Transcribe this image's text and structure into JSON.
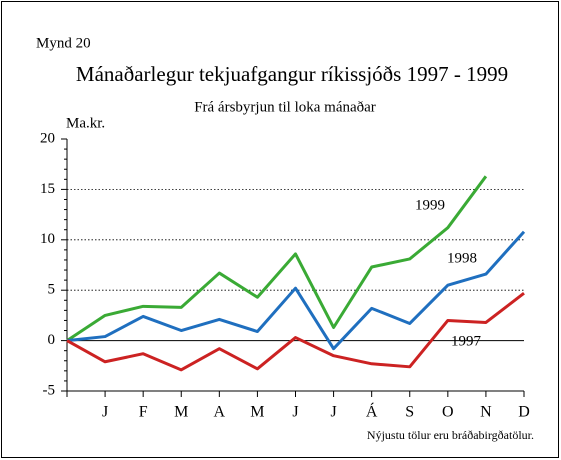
{
  "chart_data": {
    "type": "line",
    "figure_label": "Mynd 20",
    "title": "Mánaðarlegur tekjuafgangur ríkissjóðs 1997 - 1999",
    "subtitle": "Frá ársbyrjun til loka mánaðar",
    "y_label": "Ma.kr.",
    "footnote": "Nýjustu tölur eru bráðabirgðatölur.",
    "categories": [
      null,
      "J",
      "F",
      "M",
      "A",
      "M",
      "J",
      "J",
      "Á",
      "S",
      "O",
      "N",
      "D"
    ],
    "series": [
      {
        "name": "1999",
        "color": "#3aaa35",
        "values": [
          0,
          2.5,
          3.4,
          3.3,
          6.7,
          4.3,
          8.6,
          1.3,
          7.3,
          8.1,
          11.2,
          16.3,
          null
        ]
      },
      {
        "name": "1998",
        "color": "#1f6fbf",
        "values": [
          0,
          0.4,
          2.4,
          1.0,
          2.1,
          0.9,
          5.2,
          -0.8,
          3.2,
          1.7,
          5.5,
          6.6,
          10.8
        ]
      },
      {
        "name": "1997",
        "color": "#cc2222",
        "values": [
          0,
          -2.1,
          -1.3,
          -2.9,
          -0.8,
          -2.8,
          0.3,
          -1.5,
          -2.3,
          -2.6,
          2.0,
          1.8,
          4.7
        ]
      }
    ],
    "ylim": [
      -5,
      20
    ],
    "yticks": [
      -5,
      0,
      5,
      10,
      15,
      20
    ],
    "grid": true
  }
}
